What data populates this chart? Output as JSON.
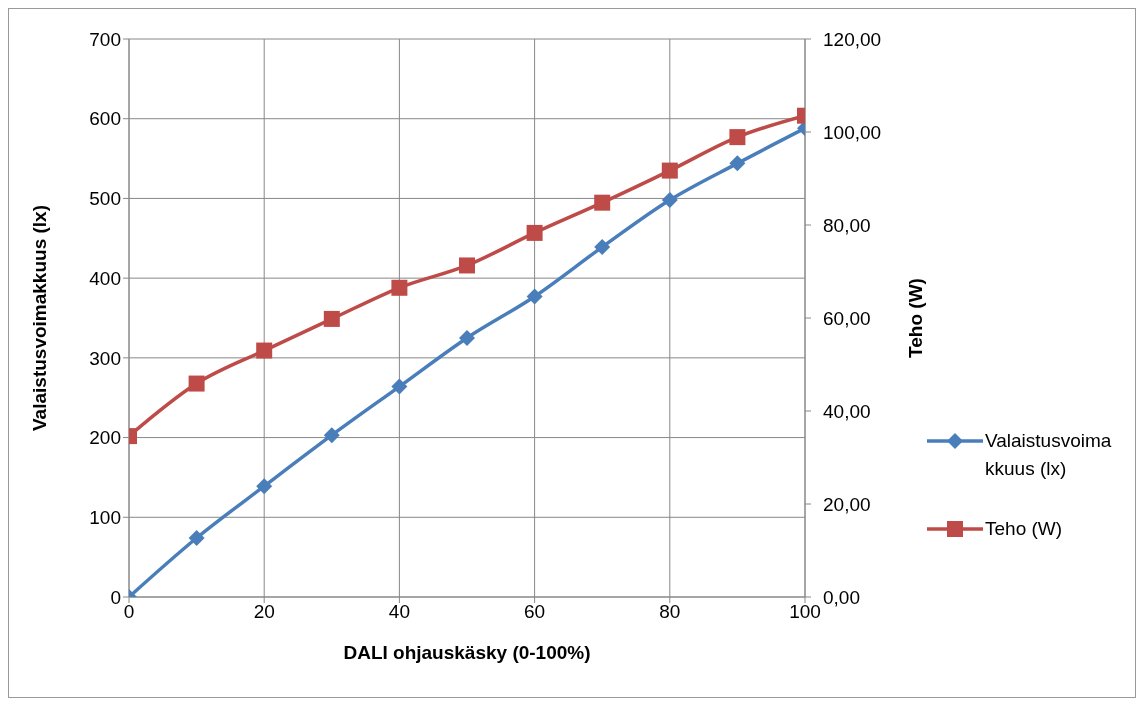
{
  "chart_data": {
    "type": "line",
    "xlabel": "DALI ohjauskäsky (0-100%)",
    "ylabel": "Valaistusvoimakkuus (lx)",
    "y2label": "Teho (W)",
    "x": [
      0,
      10,
      20,
      30,
      40,
      50,
      60,
      70,
      80,
      90,
      100
    ],
    "series": [
      {
        "name": "Valaistusvoimakkuus (lx)",
        "color": "#4a7ebb",
        "marker": "diamond",
        "values": [
          0,
          74,
          139,
          203,
          264,
          325,
          377,
          439,
          498,
          544,
          588
        ]
      },
      {
        "name": "Teho (W)",
        "color": "#be4b48",
        "marker": "square",
        "axis": "y2",
        "values": [
          34.6,
          45.9,
          53.0,
          59.8,
          66.5,
          71.3,
          78.3,
          84.8,
          91.7,
          98.9,
          103.5
        ]
      }
    ],
    "xlim": [
      0,
      100
    ],
    "xticks": [
      0,
      20,
      40,
      60,
      80,
      100
    ],
    "ylim": [
      0,
      700
    ],
    "yticks": [
      0,
      100,
      200,
      300,
      400,
      500,
      600,
      700
    ],
    "y2lim": [
      0,
      120
    ],
    "y2ticks": [
      {
        "value": 0,
        "label": "0,00"
      },
      {
        "value": 20,
        "label": "20,00"
      },
      {
        "value": 40,
        "label": "40,00"
      },
      {
        "value": 60,
        "label": "60,00"
      },
      {
        "value": 80,
        "label": "80,00"
      },
      {
        "value": 100,
        "label": "100,00"
      },
      {
        "value": 120,
        "label": "120,00"
      }
    ],
    "grid": true,
    "legend": "right",
    "line_style": "solid"
  }
}
